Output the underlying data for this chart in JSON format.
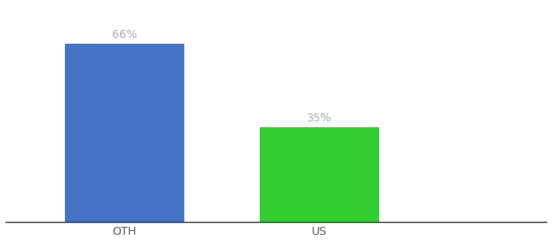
{
  "categories": [
    "OTH",
    "US"
  ],
  "values": [
    66,
    35
  ],
  "bar_colors": [
    "#4472C4",
    "#33CC33"
  ],
  "label_texts": [
    "66%",
    "35%"
  ],
  "label_color": "#aaaaaa",
  "ylim": [
    0,
    80
  ],
  "background_color": "#ffffff",
  "label_fontsize": 10,
  "tick_fontsize": 10,
  "bar_width": 0.22,
  "x_positions": [
    0.22,
    0.58
  ],
  "xlim": [
    0.0,
    1.0
  ]
}
